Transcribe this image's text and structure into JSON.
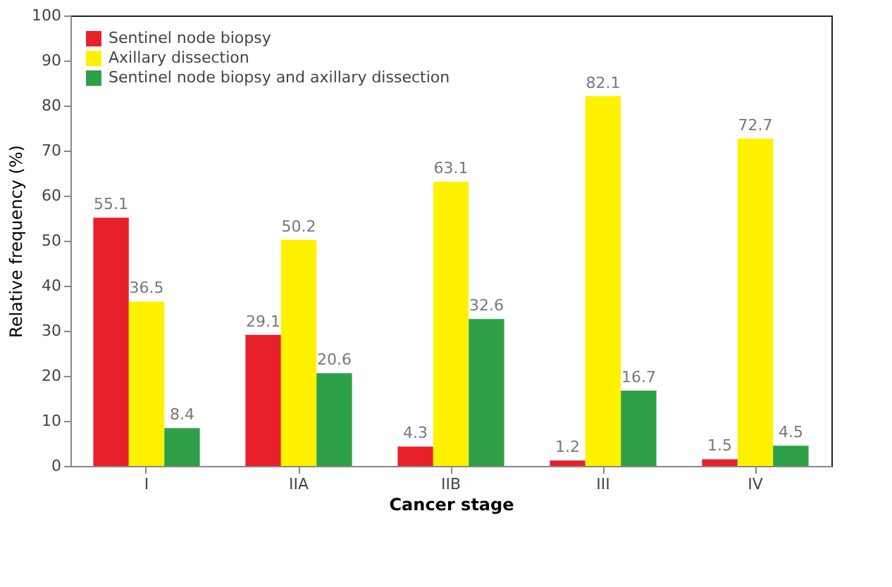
{
  "chart_data": {
    "type": "bar",
    "xlabel": "Cancer stage",
    "ylabel": "Relative frequency (%)",
    "categories": [
      "I",
      "IIA",
      "IIB",
      "III",
      "IV"
    ],
    "series": [
      {
        "name": "Sentinel node biopsy",
        "color": "#e8202a",
        "values": [
          55.1,
          29.1,
          4.3,
          1.2,
          1.5
        ]
      },
      {
        "name": "Axillary dissection",
        "color": "#fff200",
        "values": [
          36.5,
          50.2,
          63.1,
          82.1,
          72.7
        ]
      },
      {
        "name": "Sentinel node biopsy and axillary dissection",
        "color": "#2ea048",
        "values": [
          8.4,
          20.6,
          32.6,
          16.7,
          4.5
        ]
      }
    ],
    "ylim": [
      0,
      100
    ],
    "yticks": [
      0,
      10,
      20,
      30,
      40,
      50,
      60,
      70,
      80,
      90,
      100
    ],
    "data_labels": true,
    "legend": "top left",
    "grid": false
  }
}
